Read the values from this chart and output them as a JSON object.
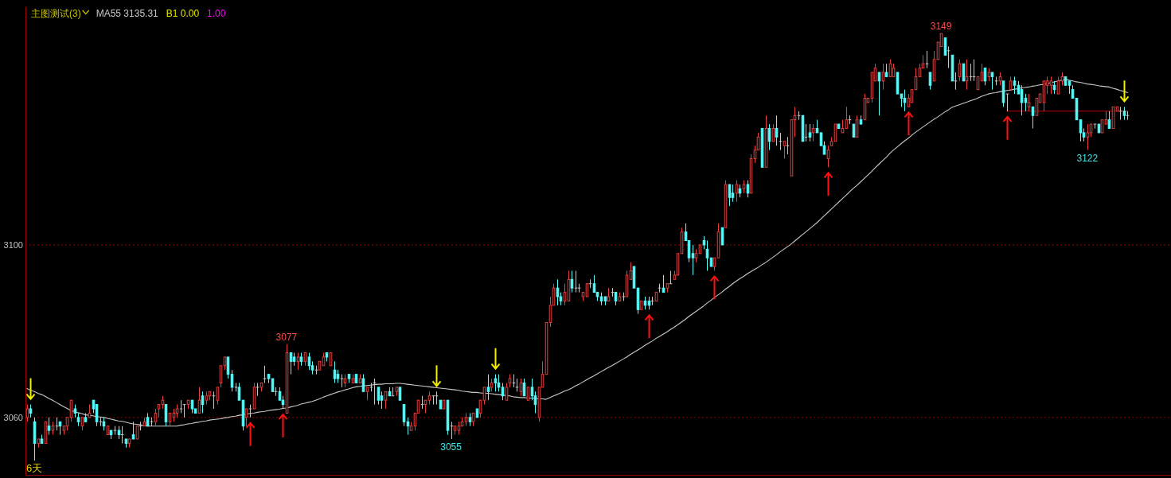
{
  "chart_data": {
    "type": "candlestick",
    "title": "主图测试(3)",
    "xlabel": "6天",
    "categories": [
      null,
      null,
      null,
      null,
      null,
      null,
      null,
      null,
      null,
      null,
      null,
      null,
      null,
      null,
      null,
      null,
      null,
      null,
      null,
      null,
      null,
      null,
      null,
      null,
      null,
      null,
      null,
      null,
      null,
      null,
      null,
      null,
      null,
      null,
      null,
      null,
      null,
      null,
      null,
      null,
      null,
      null,
      null,
      null,
      null,
      null,
      null,
      null,
      null,
      null,
      null,
      null,
      null,
      null,
      null,
      null,
      null,
      null,
      null,
      null,
      null,
      null,
      null,
      null,
      null,
      null,
      null,
      null,
      null,
      null,
      null,
      null,
      null,
      null,
      null,
      null,
      null,
      null,
      null,
      null,
      null,
      null,
      null,
      null,
      null,
      null,
      null,
      null,
      null,
      null,
      null,
      null,
      null,
      null,
      null,
      null,
      null,
      null,
      null,
      null,
      null,
      null,
      null,
      null,
      null,
      null,
      null,
      null,
      null,
      null,
      null,
      null,
      null,
      null,
      null,
      null,
      null,
      null,
      null,
      null,
      null,
      null,
      null,
      null,
      null,
      null,
      null,
      null,
      null,
      null,
      null,
      null,
      null,
      null,
      null,
      null,
      null,
      null,
      null,
      null,
      null,
      null,
      null,
      null,
      null,
      null,
      null,
      null,
      null,
      null,
      null,
      null,
      null,
      null,
      null,
      null,
      null,
      null,
      null,
      null,
      null,
      null,
      null,
      null,
      null,
      null,
      null,
      null,
      null,
      null,
      null,
      null,
      null,
      null,
      null,
      null,
      null,
      null,
      null,
      null,
      null,
      null,
      null,
      null,
      null,
      null,
      null,
      null,
      null,
      null,
      null,
      null,
      null,
      null,
      null,
      null,
      null,
      null,
      null,
      null,
      null,
      null,
      null,
      null,
      null,
      null,
      null,
      null,
      null,
      null,
      null,
      null,
      null,
      null,
      null,
      null,
      null,
      null,
      null,
      null,
      null,
      null,
      null,
      null,
      null,
      null,
      null,
      null,
      null,
      null,
      null,
      null,
      null,
      null,
      null,
      null,
      null,
      null,
      null,
      null,
      null,
      null,
      null,
      null,
      null,
      null,
      null,
      null,
      null,
      null,
      null,
      null,
      null,
      null,
      null,
      null,
      null,
      null,
      null,
      null,
      null,
      null,
      null,
      null,
      null,
      null,
      null,
      null,
      null,
      null,
      null,
      null,
      null,
      null,
      null,
      null,
      null,
      null,
      null,
      null,
      null,
      null,
      null,
      null,
      null,
      null,
      null,
      null,
      null,
      null,
      null,
      null,
      null,
      null,
      null,
      null,
      null,
      null,
      null,
      null,
      null,
      null
    ],
    "ohlc": [
      [
        3060,
        3063,
        3059,
        3062
      ],
      [
        3062,
        3063,
        3060,
        3061
      ],
      [
        3059,
        3060,
        3050,
        3054
      ],
      [
        3054,
        3055,
        3053,
        3055
      ],
      [
        3055,
        3056,
        3054,
        3054
      ],
      [
        3054,
        3059,
        3054,
        3059
      ],
      [
        3058,
        3060,
        3056,
        3057
      ],
      [
        3057,
        3059,
        3056,
        3058
      ],
      [
        3058,
        3060,
        3057,
        3058
      ],
      [
        3059,
        3059,
        3056,
        3058
      ],
      [
        3057,
        3058,
        3056,
        3058
      ],
      [
        3058,
        3060,
        3057,
        3060
      ],
      [
        3060,
        3064,
        3059,
        3064
      ],
      [
        3062,
        3063,
        3060,
        3061
      ],
      [
        3060,
        3061,
        3058,
        3059
      ],
      [
        3058,
        3060,
        3057,
        3060
      ],
      [
        3060,
        3061,
        3059,
        3059
      ],
      [
        3060,
        3063,
        3060,
        3061
      ],
      [
        3064,
        3064,
        3061,
        3062
      ],
      [
        3063,
        3063,
        3058,
        3059
      ],
      [
        3059,
        3060,
        3058,
        3059
      ],
      [
        3059,
        3060,
        3057,
        3058
      ],
      [
        3056,
        3058,
        3056,
        3058
      ],
      [
        3057,
        3057,
        3055,
        3056
      ],
      [
        3057,
        3058,
        3056,
        3057
      ],
      [
        3057,
        3058,
        3055,
        3056
      ],
      [
        3056,
        3058,
        3054,
        3056
      ],
      [
        3055,
        3055,
        3053,
        3054
      ],
      [
        3054,
        3055,
        3053,
        3055
      ],
      [
        3056,
        3059,
        3055,
        3055
      ],
      [
        3055,
        3058,
        3055,
        3058
      ],
      [
        3058,
        3059,
        3057,
        3058
      ],
      [
        3058,
        3060,
        3058,
        3059
      ],
      [
        3060,
        3061,
        3058,
        3058
      ],
      [
        3059,
        3060,
        3058,
        3059
      ],
      [
        3059,
        3062,
        3058,
        3061
      ],
      [
        3062,
        3063,
        3060,
        3063
      ],
      [
        3063,
        3065,
        3062,
        3064
      ],
      [
        3063,
        3063,
        3058,
        3059
      ],
      [
        3059,
        3061,
        3058,
        3061
      ],
      [
        3060,
        3062,
        3059,
        3061
      ],
      [
        3061,
        3063,
        3060,
        3062
      ],
      [
        3062,
        3064,
        3061,
        3062
      ],
      [
        3063,
        3063,
        3060,
        3063
      ],
      [
        3063,
        3064,
        3062,
        3064
      ],
      [
        3064,
        3064,
        3061,
        3062
      ],
      [
        3062,
        3062,
        3061,
        3061
      ],
      [
        3061,
        3067,
        3061,
        3064
      ],
      [
        3065,
        3066,
        3061,
        3063
      ],
      [
        3064,
        3066,
        3063,
        3065
      ],
      [
        3065,
        3066,
        3064,
        3066
      ],
      [
        3065,
        3066,
        3062,
        3065
      ],
      [
        3064,
        3067,
        3063,
        3067
      ],
      [
        3068,
        3072,
        3067,
        3072
      ],
      [
        3072,
        3074,
        3071,
        3074
      ],
      [
        3074,
        3074,
        3069,
        3070
      ],
      [
        3070,
        3071,
        3066,
        3067
      ],
      [
        3067,
        3068,
        3066,
        3067
      ],
      [
        3067,
        3068,
        3064,
        3064
      ],
      [
        3064,
        3064,
        3057,
        3058
      ],
      [
        3060,
        3062,
        3058,
        3062
      ],
      [
        3062,
        3063,
        3060,
        3062
      ],
      [
        3062,
        3068,
        3062,
        3067
      ],
      [
        3067,
        3068,
        3065,
        3067
      ],
      [
        3067,
        3068,
        3066,
        3068
      ],
      [
        3069,
        3072,
        3068,
        3069
      ],
      [
        3070,
        3070,
        3068,
        3069
      ],
      [
        3069,
        3069,
        3066,
        3066
      ],
      [
        3066,
        3067,
        3065,
        3066
      ],
      [
        3066,
        3067,
        3064,
        3064
      ],
      [
        3064,
        3065,
        3062,
        3063
      ],
      [
        3061,
        3077,
        3061,
        3075
      ],
      [
        3075,
        3075,
        3070,
        3073
      ],
      [
        3074,
        3075,
        3072,
        3073
      ],
      [
        3073,
        3075,
        3071,
        3074
      ],
      [
        3074,
        3075,
        3072,
        3073
      ],
      [
        3073,
        3075,
        3072,
        3075
      ],
      [
        3074,
        3075,
        3071,
        3072
      ],
      [
        3072,
        3073,
        3070,
        3071
      ],
      [
        3071,
        3072,
        3070,
        3071
      ],
      [
        3071,
        3073,
        3071,
        3073
      ],
      [
        3072,
        3075,
        3072,
        3074
      ],
      [
        3075,
        3075,
        3073,
        3074
      ],
      [
        3072,
        3075,
        3072,
        3075
      ],
      [
        3071,
        3073,
        3068,
        3069
      ],
      [
        3070,
        3071,
        3068,
        3069
      ],
      [
        3069,
        3070,
        3067,
        3069
      ],
      [
        3068,
        3070,
        3067,
        3069
      ],
      [
        3070,
        3070,
        3068,
        3069
      ],
      [
        3068,
        3070,
        3068,
        3069
      ],
      [
        3070,
        3070,
        3068,
        3068
      ],
      [
        3068,
        3070,
        3068,
        3069
      ],
      [
        3069,
        3070,
        3066,
        3066
      ],
      [
        3066,
        3067,
        3064,
        3067
      ],
      [
        3067,
        3068,
        3066,
        3067
      ],
      [
        3068,
        3069,
        3063,
        3068
      ],
      [
        3067,
        3067,
        3063,
        3064
      ],
      [
        3065,
        3066,
        3062,
        3064
      ],
      [
        3064,
        3066,
        3062,
        3066
      ],
      [
        3066,
        3067,
        3065,
        3065
      ],
      [
        3065,
        3067,
        3065,
        3065
      ],
      [
        3066,
        3067,
        3065,
        3067
      ],
      [
        3067,
        3067,
        3064,
        3064
      ],
      [
        3063,
        3063,
        3058,
        3059
      ],
      [
        3059,
        3060,
        3056,
        3058
      ],
      [
        3057,
        3059,
        3057,
        3058
      ],
      [
        3058,
        3061,
        3057,
        3061
      ],
      [
        3061,
        3064,
        3061,
        3064
      ],
      [
        3063,
        3065,
        3062,
        3063
      ],
      [
        3063,
        3064,
        3061,
        3064
      ],
      [
        3064,
        3066,
        3063,
        3065
      ],
      [
        3065,
        3065,
        3063,
        3065
      ],
      [
        3065,
        3066,
        3063,
        3065
      ],
      [
        3064,
        3064,
        3062,
        3062
      ],
      [
        3062,
        3064,
        3062,
        3064
      ],
      [
        3064,
        3064,
        3056,
        3057
      ],
      [
        3058,
        3059,
        3055,
        3058
      ],
      [
        3057,
        3058,
        3056,
        3058
      ],
      [
        3057,
        3059,
        3056,
        3058
      ],
      [
        3058,
        3060,
        3058,
        3059
      ],
      [
        3059,
        3061,
        3058,
        3060
      ],
      [
        3060,
        3061,
        3058,
        3059
      ],
      [
        3059,
        3061,
        3058,
        3061
      ],
      [
        3062,
        3062,
        3060,
        3060
      ],
      [
        3061,
        3064,
        3060,
        3064
      ],
      [
        3064,
        3067,
        3063,
        3067
      ],
      [
        3067,
        3070,
        3064,
        3066
      ],
      [
        3067,
        3069,
        3066,
        3068
      ],
      [
        3069,
        3070,
        3066,
        3068
      ],
      [
        3068,
        3070,
        3066,
        3067
      ],
      [
        3067,
        3068,
        3064,
        3065
      ],
      [
        3064,
        3068,
        3064,
        3067
      ],
      [
        3068,
        3070,
        3067,
        3069
      ],
      [
        3068,
        3070,
        3067,
        3068
      ],
      [
        3067,
        3069,
        3066,
        3067
      ],
      [
        3066,
        3069,
        3065,
        3068
      ],
      [
        3068,
        3069,
        3065,
        3065
      ],
      [
        3064,
        3067,
        3064,
        3067
      ],
      [
        3067,
        3069,
        3064,
        3065
      ],
      [
        3065,
        3066,
        3061,
        3063
      ],
      [
        3060,
        3067,
        3059,
        3067
      ],
      [
        3067,
        3073,
        3067,
        3070
      ],
      [
        3070,
        3082,
        3070,
        3082
      ],
      [
        3082,
        3088,
        3081,
        3086
      ],
      [
        3086,
        3091,
        3086,
        3090
      ],
      [
        3090,
        3092,
        3086,
        3088
      ],
      [
        3088,
        3089,
        3086,
        3087
      ],
      [
        3087,
        3091,
        3086,
        3089
      ],
      [
        3087,
        3094,
        3087,
        3092
      ],
      [
        3092,
        3094,
        3089,
        3090
      ],
      [
        3090,
        3094,
        3089,
        3090
      ],
      [
        3090,
        3091,
        3089,
        3090
      ],
      [
        3088,
        3089,
        3087,
        3089
      ],
      [
        3088,
        3091,
        3088,
        3091
      ],
      [
        3091,
        3092,
        3090,
        3091
      ],
      [
        3091,
        3093,
        3089,
        3089
      ],
      [
        3089,
        3089,
        3087,
        3088
      ],
      [
        3088,
        3089,
        3086,
        3087
      ],
      [
        3088,
        3088,
        3086,
        3087
      ],
      [
        3087,
        3090,
        3087,
        3088
      ],
      [
        3089,
        3090,
        3088,
        3089
      ],
      [
        3089,
        3089,
        3086,
        3087
      ],
      [
        3087,
        3089,
        3087,
        3088
      ],
      [
        3088,
        3089,
        3087,
        3088
      ],
      [
        3088,
        3094,
        3088,
        3093
      ],
      [
        3092,
        3096,
        3092,
        3094
      ],
      [
        3095,
        3095,
        3090,
        3090
      ],
      [
        3090,
        3090,
        3084,
        3085
      ],
      [
        3085,
        3087,
        3085,
        3087
      ],
      [
        3087,
        3088,
        3085,
        3086
      ],
      [
        3087,
        3088,
        3085,
        3086
      ],
      [
        3087,
        3088,
        3086,
        3087
      ],
      [
        3087,
        3089,
        3087,
        3089
      ],
      [
        3090,
        3091,
        3089,
        3090
      ],
      [
        3090,
        3093,
        3089,
        3089
      ],
      [
        3090,
        3091,
        3089,
        3091
      ],
      [
        3091,
        3094,
        3091,
        3091
      ],
      [
        3092,
        3094,
        3092,
        3093
      ],
      [
        3093,
        3098,
        3093,
        3098
      ],
      [
        3098,
        3104,
        3098,
        3103
      ],
      [
        3103,
        3105,
        3101,
        3101
      ],
      [
        3101,
        3101,
        3096,
        3097
      ],
      [
        3098,
        3100,
        3093,
        3097
      ],
      [
        3097,
        3099,
        3096,
        3098
      ],
      [
        3098,
        3100,
        3098,
        3100
      ],
      [
        3101,
        3102,
        3099,
        3100
      ],
      [
        3099,
        3101,
        3094,
        3097
      ],
      [
        3097,
        3097,
        3095,
        3095
      ],
      [
        3095,
        3097,
        3094,
        3097
      ],
      [
        3097,
        3105,
        3097,
        3103
      ],
      [
        3104,
        3104,
        3100,
        3100
      ],
      [
        3104,
        3115,
        3104,
        3114
      ],
      [
        3114,
        3114,
        3109,
        3111
      ],
      [
        3112,
        3114,
        3110,
        3111
      ],
      [
        3112,
        3115,
        3110,
        3114
      ],
      [
        3113,
        3114,
        3111,
        3112
      ],
      [
        3113,
        3115,
        3112,
        3114
      ],
      [
        3114,
        3115,
        3111,
        3112
      ],
      [
        3112,
        3121,
        3112,
        3120
      ],
      [
        3120,
        3123,
        3119,
        3122
      ],
      [
        3122,
        3126,
        3122,
        3125
      ],
      [
        3127,
        3127,
        3118,
        3118
      ],
      [
        3118,
        3130,
        3118,
        3127
      ],
      [
        3127,
        3128,
        3122,
        3124
      ],
      [
        3124,
        3128,
        3124,
        3127
      ],
      [
        3127,
        3130,
        3123,
        3125
      ],
      [
        3124,
        3126,
        3122,
        3124
      ],
      [
        3123,
        3124,
        3120,
        3124
      ],
      [
        3123,
        3125,
        3121,
        3123
      ],
      [
        3116,
        3129,
        3116,
        3129
      ],
      [
        3129,
        3132,
        3125,
        3130
      ],
      [
        3130,
        3131,
        3129,
        3130
      ],
      [
        3130,
        3130,
        3124,
        3124
      ],
      [
        3125,
        3128,
        3124,
        3125
      ],
      [
        3126,
        3128,
        3124,
        3125
      ],
      [
        3126,
        3128,
        3124,
        3127
      ],
      [
        3127,
        3129,
        3126,
        3126
      ],
      [
        3126,
        3126,
        3123,
        3123
      ],
      [
        3123,
        3124,
        3121,
        3121
      ],
      [
        3120,
        3123,
        3118,
        3122
      ],
      [
        3123,
        3125,
        3123,
        3124
      ],
      [
        3124,
        3128,
        3124,
        3128
      ],
      [
        3128,
        3128,
        3127,
        3127
      ],
      [
        3126,
        3129,
        3126,
        3127
      ],
      [
        3127,
        3132,
        3127,
        3129
      ],
      [
        3129,
        3130,
        3128,
        3129
      ],
      [
        3128,
        3128,
        3125,
        3125
      ],
      [
        3125,
        3130,
        3125,
        3129
      ],
      [
        3129,
        3130,
        3128,
        3128
      ],
      [
        3129,
        3135,
        3129,
        3134
      ],
      [
        3133,
        3134,
        3133,
        3134
      ],
      [
        3134,
        3140,
        3133,
        3140
      ],
      [
        3138,
        3142,
        3138,
        3141
      ],
      [
        3140,
        3140,
        3130,
        3138
      ],
      [
        3138,
        3142,
        3136,
        3140
      ],
      [
        3140,
        3142,
        3139,
        3139
      ],
      [
        3139,
        3143,
        3139,
        3142
      ],
      [
        3139,
        3142,
        3139,
        3141
      ],
      [
        3140,
        3140,
        3135,
        3135
      ],
      [
        3135,
        3135,
        3132,
        3134
      ],
      [
        3134,
        3136,
        3131,
        3133
      ],
      [
        3132,
        3135,
        3132,
        3134
      ],
      [
        3133,
        3136,
        3133,
        3136
      ],
      [
        3136,
        3141,
        3136,
        3139
      ],
      [
        3139,
        3142,
        3139,
        3141
      ],
      [
        3141,
        3144,
        3141,
        3142
      ],
      [
        3142,
        3145,
        3141,
        3142
      ],
      [
        3140,
        3140,
        3136,
        3137
      ],
      [
        3138,
        3145,
        3138,
        3143
      ],
      [
        3143,
        3147,
        3143,
        3147
      ],
      [
        3146,
        3149,
        3146,
        3149
      ],
      [
        3148,
        3148,
        3144,
        3144
      ],
      [
        3145,
        3146,
        3141,
        3145
      ],
      [
        3144,
        3144,
        3138,
        3138
      ],
      [
        3138,
        3140,
        3136,
        3138
      ],
      [
        3139,
        3143,
        3138,
        3142
      ],
      [
        3142,
        3142,
        3138,
        3138
      ],
      [
        3138,
        3143,
        3136,
        3139
      ],
      [
        3139,
        3142,
        3138,
        3139
      ],
      [
        3139,
        3143,
        3138,
        3139
      ],
      [
        3136,
        3139,
        3136,
        3139
      ],
      [
        3138,
        3142,
        3138,
        3140
      ],
      [
        3141,
        3141,
        3137,
        3138
      ],
      [
        3139,
        3141,
        3138,
        3140
      ],
      [
        3140,
        3140,
        3136,
        3139
      ],
      [
        3138,
        3139,
        3137,
        3138
      ],
      [
        3138,
        3140,
        3137,
        3139
      ],
      [
        3138,
        3138,
        3132,
        3133
      ],
      [
        3135,
        3135,
        3131,
        3135
      ],
      [
        3136,
        3139,
        3136,
        3138
      ],
      [
        3138,
        3139,
        3135,
        3137
      ],
      [
        3137,
        3138,
        3135,
        3135
      ],
      [
        3136,
        3137,
        3130,
        3133
      ],
      [
        3134,
        3135,
        3131,
        3133
      ],
      [
        3132,
        3135,
        3131,
        3133
      ],
      [
        3132,
        3132,
        3127,
        3130
      ],
      [
        3130,
        3134,
        3130,
        3134
      ],
      [
        3133,
        3135,
        3133,
        3135
      ],
      [
        3133,
        3138,
        3131,
        3138
      ],
      [
        3137,
        3139,
        3135,
        3138
      ],
      [
        3137,
        3139,
        3135,
        3138
      ],
      [
        3137,
        3138,
        3135,
        3136
      ],
      [
        3135,
        3139,
        3135,
        3138
      ],
      [
        3138,
        3140,
        3137,
        3139
      ],
      [
        3139,
        3139,
        3137,
        3137
      ],
      [
        3138,
        3138,
        3135,
        3137
      ],
      [
        3136,
        3137,
        3134,
        3134
      ],
      [
        3134,
        3134,
        3129,
        3129
      ],
      [
        3129,
        3129,
        3124,
        3126
      ],
      [
        3126,
        3127,
        3124,
        3125
      ],
      [
        3125,
        3128,
        3122,
        3126
      ],
      [
        3126,
        3128,
        3125,
        3128
      ],
      [
        3128,
        3128,
        3127,
        3128
      ],
      [
        3128,
        3128,
        3126,
        3126
      ],
      [
        3126,
        3129,
        3126,
        3129
      ],
      [
        3128,
        3131,
        3128,
        3129
      ],
      [
        3129,
        3131,
        3127,
        3127
      ],
      [
        3127,
        3132,
        3127,
        3132
      ],
      [
        3131,
        3132,
        3131,
        3132
      ],
      [
        3131,
        3132,
        3129,
        3131
      ],
      [
        3131,
        3132,
        3129,
        3130
      ],
      [
        3130,
        3131,
        3129,
        3130
      ]
    ],
    "value_labels": [
      null,
      null,
      null,
      null,
      null,
      null,
      null,
      null,
      null,
      null,
      null,
      null,
      null,
      null,
      null,
      null,
      null,
      null,
      null,
      null,
      null,
      null,
      null,
      null,
      null,
      null,
      null,
      null,
      null,
      null,
      null,
      null,
      null,
      null,
      null,
      null,
      null,
      null,
      null,
      null,
      null,
      null,
      null,
      null,
      null,
      null,
      null,
      null,
      null,
      null,
      null,
      null,
      null,
      null,
      null,
      null,
      null,
      null,
      null,
      null,
      null,
      null,
      null,
      null,
      null,
      null,
      null,
      null,
      null,
      null,
      null,
      "3077",
      null,
      null,
      null,
      null,
      null,
      null,
      null,
      null,
      null,
      null,
      null,
      null,
      null,
      null,
      null,
      null,
      null,
      null,
      null,
      null,
      null,
      null,
      null,
      null,
      null,
      null,
      null,
      null,
      null,
      null,
      null,
      null,
      null,
      null,
      null,
      null,
      null,
      null,
      null,
      null,
      null,
      null,
      null,
      null,
      "3055",
      null,
      null,
      null,
      null,
      null,
      null,
      null,
      null,
      null,
      null,
      null,
      null,
      null,
      null,
      null,
      null,
      null,
      null,
      null,
      null,
      null,
      null,
      null,
      null,
      null,
      null,
      null,
      null,
      null,
      null,
      null,
      null,
      null,
      null,
      null,
      null,
      null,
      null,
      null,
      null,
      null,
      null,
      null,
      null,
      null,
      null,
      null,
      null,
      null,
      null,
      null,
      null,
      null,
      null,
      null,
      null,
      null,
      null,
      null,
      null,
      null,
      null,
      null,
      null,
      null,
      null,
      null,
      null,
      null,
      null,
      null,
      null,
      null,
      null,
      null,
      null,
      null,
      null,
      null,
      null,
      null,
      null,
      null,
      null,
      null,
      null,
      null,
      null,
      null,
      null,
      null,
      null,
      null,
      null,
      null,
      null,
      null,
      null,
      null,
      null,
      null,
      null,
      null,
      null,
      null,
      null,
      null,
      null,
      null,
      null,
      null,
      null,
      null,
      null,
      null,
      null,
      null,
      null,
      null,
      null,
      null,
      null,
      null,
      null,
      null,
      null,
      null,
      null,
      null,
      null,
      null,
      null,
      null,
      "3149",
      null,
      null,
      null,
      null,
      null,
      null,
      null,
      null,
      null,
      null,
      null,
      null,
      null,
      null,
      null,
      null,
      null,
      null,
      null,
      null,
      null,
      null,
      null,
      null,
      null,
      null,
      null,
      null,
      null,
      null,
      null,
      null,
      null,
      null,
      null,
      null,
      null,
      null,
      null,
      "3122",
      null,
      null,
      null,
      null,
      null,
      null,
      null,
      null,
      null,
      null,
      null
    ],
    "series": [
      {
        "name": "MA55 3135.31",
        "type": "line",
        "color": "#c8c8c8",
        "values": [
          3066.7,
          3066.3,
          3066.0,
          3065.6,
          3065.3,
          3064.9,
          3064.4,
          3064.0,
          3063.5,
          3063.0,
          3062.5,
          3062.1,
          3061.6,
          3061.4,
          3061.1,
          3060.9,
          3060.6,
          3060.5,
          3060.4,
          3060.2,
          3060.1,
          3060.0,
          3059.8,
          3059.6,
          3059.4,
          3059.2,
          3059.1,
          3058.9,
          3058.7,
          3058.5,
          3058.4,
          3058.3,
          3058.1,
          3058.0,
          3058.0,
          3058.0,
          3058.0,
          3058.0,
          3058.0,
          3058.0,
          3058.0,
          3058.0,
          3058.2,
          3058.3,
          3058.5,
          3058.6,
          3058.8,
          3058.9,
          3059.1,
          3059.2,
          3059.4,
          3059.5,
          3059.6,
          3059.7,
          3059.9,
          3060.0,
          3060.2,
          3060.3,
          3060.5,
          3060.6,
          3060.8,
          3060.9,
          3061.0,
          3061.2,
          3061.3,
          3061.4,
          3061.6,
          3061.7,
          3061.8,
          3061.9,
          3062.1,
          3062.2,
          3062.4,
          3062.6,
          3062.8,
          3063.1,
          3063.3,
          3063.5,
          3063.7,
          3064.0,
          3064.3,
          3064.7,
          3065.0,
          3065.3,
          3065.6,
          3065.9,
          3066.1,
          3066.4,
          3066.6,
          3066.9,
          3067.1,
          3067.2,
          3067.3,
          3067.4,
          3067.5,
          3067.6,
          3067.7,
          3067.7,
          3067.8,
          3067.8,
          3067.8,
          3067.9,
          3067.9,
          3067.8,
          3067.7,
          3067.6,
          3067.5,
          3067.4,
          3067.3,
          3067.2,
          3067.1,
          3067.0,
          3066.9,
          3066.8,
          3066.7,
          3066.6,
          3066.5,
          3066.4,
          3066.3,
          3066.1,
          3066.0,
          3065.9,
          3065.8,
          3065.8,
          3065.7,
          3065.6,
          3065.6,
          3065.5,
          3065.4,
          3065.3,
          3065.2,
          3065.1,
          3065.0,
          3064.8,
          3064.7,
          3064.6,
          3064.6,
          3064.5,
          3064.5,
          3064.4,
          3064.3,
          3064.3,
          3064.2,
          3064.6,
          3065.0,
          3065.3,
          3065.7,
          3066.1,
          3066.4,
          3066.8,
          3067.3,
          3067.7,
          3068.2,
          3068.7,
          3069.2,
          3069.6,
          3070.1,
          3070.6,
          3071.1,
          3071.6,
          3072.0,
          3072.5,
          3073.0,
          3073.5,
          3074.0,
          3074.6,
          3075.1,
          3075.6,
          3076.1,
          3076.7,
          3077.2,
          3077.7,
          3078.3,
          3078.8,
          3079.3,
          3079.8,
          3080.4,
          3080.9,
          3081.5,
          3082.1,
          3082.7,
          3083.4,
          3084.0,
          3084.6,
          3085.2,
          3085.8,
          3086.5,
          3087.1,
          3087.8,
          3088.4,
          3089.0,
          3089.7,
          3090.3,
          3091.0,
          3091.6,
          3092.2,
          3092.7,
          3093.3,
          3093.8,
          3094.3,
          3094.8,
          3095.4,
          3095.9,
          3096.5,
          3097.1,
          3097.7,
          3098.4,
          3099.0,
          3099.6,
          3100.2,
          3100.9,
          3101.6,
          3102.3,
          3103.0,
          3103.7,
          3104.4,
          3105.1,
          3105.9,
          3106.7,
          3107.5,
          3108.3,
          3109.1,
          3109.9,
          3110.7,
          3111.5,
          3112.3,
          3113.1,
          3113.8,
          3114.6,
          3115.4,
          3116.2,
          3117.0,
          3117.9,
          3118.7,
          3119.5,
          3120.3,
          3121.2,
          3122.0,
          3122.7,
          3123.4,
          3124.1,
          3124.7,
          3125.4,
          3126.1,
          3126.7,
          3127.3,
          3127.9,
          3128.5,
          3129.1,
          3129.6,
          3130.2,
          3130.8,
          3131.3,
          3131.9,
          3132.2,
          3132.5,
          3132.8,
          3133.1,
          3133.4,
          3133.7,
          3134.0,
          3134.4,
          3134.7,
          3135.0,
          3135.2,
          3135.3,
          3135.5,
          3135.6,
          3135.8,
          3135.9,
          3136.1,
          3136.2,
          3136.4,
          3136.5,
          3136.6,
          3136.8,
          3136.9,
          3137.1,
          3137.2,
          3137.4,
          3137.6,
          3137.8,
          3138.0,
          3138.2,
          3138.4,
          3138.2,
          3138.0,
          3137.8,
          3137.7,
          3137.5,
          3137.3,
          3137.2,
          3137.1,
          3136.9,
          3136.8,
          3136.7,
          3136.6,
          3136.3,
          3136.1,
          3135.8,
          3135.6,
          3135.3
        ]
      },
      {
        "type": "line",
        "color": "#c80000",
        "values": [
          null,
          null,
          null,
          null,
          null,
          null,
          null,
          null,
          null,
          null,
          null,
          null,
          null,
          null,
          null,
          null,
          null,
          null,
          null,
          null,
          null,
          null,
          null,
          null,
          null,
          null,
          null,
          null,
          null,
          null,
          null,
          null,
          null,
          null,
          null,
          null,
          null,
          null,
          null,
          null,
          null,
          null,
          null,
          null,
          null,
          null,
          null,
          null,
          null,
          null,
          null,
          null,
          null,
          null,
          null,
          null,
          null,
          null,
          null,
          null,
          null,
          null,
          null,
          null,
          null,
          null,
          null,
          null,
          null,
          null,
          null,
          null,
          null,
          null,
          null,
          null,
          null,
          null,
          null,
          null,
          null,
          null,
          null,
          null,
          null,
          null,
          null,
          null,
          null,
          null,
          null,
          null,
          null,
          null,
          null,
          null,
          null,
          null,
          null,
          null,
          null,
          null,
          null,
          null,
          null,
          null,
          null,
          null,
          null,
          null,
          null,
          null,
          null,
          null,
          null,
          null,
          null,
          null,
          null,
          null,
          null,
          null,
          null,
          null,
          null,
          null,
          null,
          null,
          null,
          null,
          null,
          null,
          null,
          null,
          null,
          null,
          null,
          null,
          null,
          null,
          null,
          null,
          null,
          null,
          null,
          null,
          null,
          null,
          null,
          null,
          null,
          null,
          null,
          null,
          null,
          null,
          null,
          null,
          null,
          null,
          null,
          null,
          null,
          null,
          null,
          null,
          null,
          null,
          null,
          null,
          null,
          null,
          null,
          null,
          null,
          null,
          null,
          null,
          null,
          null,
          null,
          null,
          null,
          null,
          null,
          null,
          null,
          null,
          null,
          null,
          null,
          null,
          null,
          null,
          null,
          null,
          null,
          null,
          null,
          null,
          null,
          null,
          null,
          null,
          null,
          null,
          null,
          null,
          null,
          null,
          null,
          null,
          null,
          null,
          null,
          null,
          null,
          null,
          null,
          null,
          null,
          null,
          null,
          null,
          null,
          null,
          null,
          null,
          null,
          null,
          null,
          null,
          null,
          null,
          null,
          null,
          null,
          null,
          null,
          null,
          null,
          null,
          null,
          null,
          null,
          null,
          null,
          null,
          null,
          null,
          null,
          null,
          null,
          null,
          null,
          null,
          null,
          null,
          null,
          null,
          null,
          null,
          null,
          null,
          null,
          null,
          null,
          null,
          3131,
          3131,
          3131,
          3131,
          3131,
          3131,
          3131,
          3131,
          3131,
          3131,
          3131,
          3131,
          3131,
          3131,
          3131,
          3131,
          3131,
          3131,
          3131,
          3131,
          3131,
          3131,
          3131,
          3131,
          3131,
          3131,
          3131,
          3131,
          3131,
          3131,
          3131,
          3131,
          3131,
          3131
        ]
      }
    ],
    "ylim": [
      3046.7,
      3155.3
    ],
    "yticks": [
      3060,
      3100
    ],
    "grid": "y",
    "legend": "top left",
    "tick_labels": "y",
    "annotations": [
      "B1 0.00",
      "1.00"
    ]
  }
}
